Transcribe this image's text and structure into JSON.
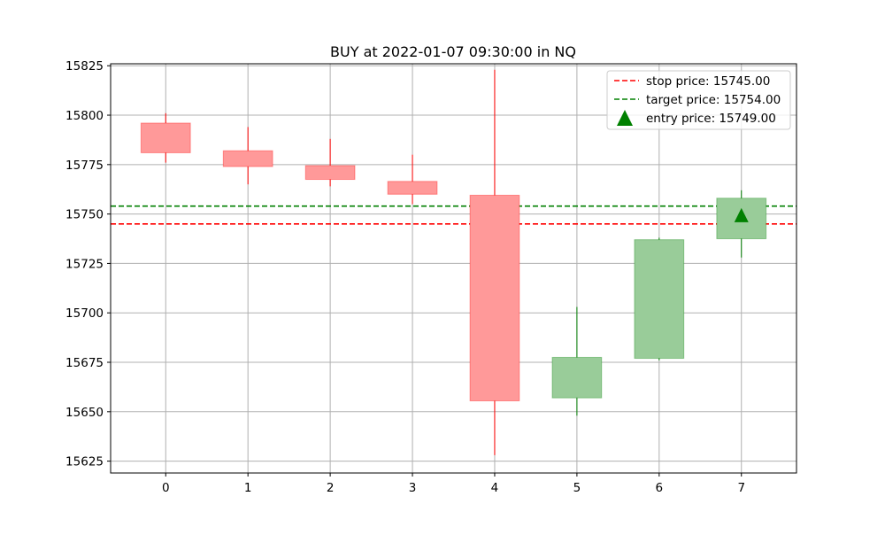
{
  "chart_data": {
    "type": "candlestick",
    "title": "BUY at 2022-01-07 09:30:00 in NQ",
    "xlabel": "",
    "ylabel": "",
    "xlim": [
      -0.67,
      7.67
    ],
    "ylim": [
      15619,
      15826
    ],
    "grid": true,
    "legend_position": "top-right",
    "x_ticks": [
      0,
      1,
      2,
      3,
      4,
      5,
      6,
      7
    ],
    "y_ticks": [
      15625,
      15650,
      15675,
      15700,
      15725,
      15750,
      15775,
      15800,
      15825
    ],
    "candles": [
      {
        "x": 0,
        "open": 15796,
        "high": 15801,
        "low": 15776,
        "close": 15781
      },
      {
        "x": 1,
        "open": 15782,
        "high": 15794,
        "low": 15765,
        "close": 15774
      },
      {
        "x": 2,
        "open": 15774.5,
        "high": 15788,
        "low": 15764,
        "close": 15767.5
      },
      {
        "x": 3,
        "open": 15766.5,
        "high": 15780,
        "low": 15755,
        "close": 15760
      },
      {
        "x": 4,
        "open": 15759.5,
        "high": 15823,
        "low": 15628,
        "close": 15655.5
      },
      {
        "x": 5,
        "open": 15657,
        "high": 15703,
        "low": 15648,
        "close": 15677.5
      },
      {
        "x": 6,
        "open": 15677,
        "high": 15738,
        "low": 15676,
        "close": 15737
      },
      {
        "x": 7,
        "open": 15737.5,
        "high": 15762,
        "low": 15728,
        "close": 15758
      }
    ],
    "stop_price": 15745.0,
    "target_price": 15754.0,
    "entry": {
      "x": 7,
      "price": 15749.0
    },
    "legend": [
      {
        "label": "stop price: 15745.00",
        "style": "dashed-line",
        "color": "#ff0000"
      },
      {
        "label": "target price: 15754.00",
        "style": "dashed-line",
        "color": "#008000"
      },
      {
        "label": "entry price: 15749.00",
        "style": "triangle-marker",
        "color": "#008000"
      }
    ],
    "colors": {
      "down_fill": "#ff9999",
      "down_edge": "#ff0000",
      "up_fill": "#99cc99",
      "up_edge": "#008000",
      "grid": "#b0b0b0",
      "stop": "#ff0000",
      "target": "#008000",
      "entry": "#008000"
    }
  }
}
